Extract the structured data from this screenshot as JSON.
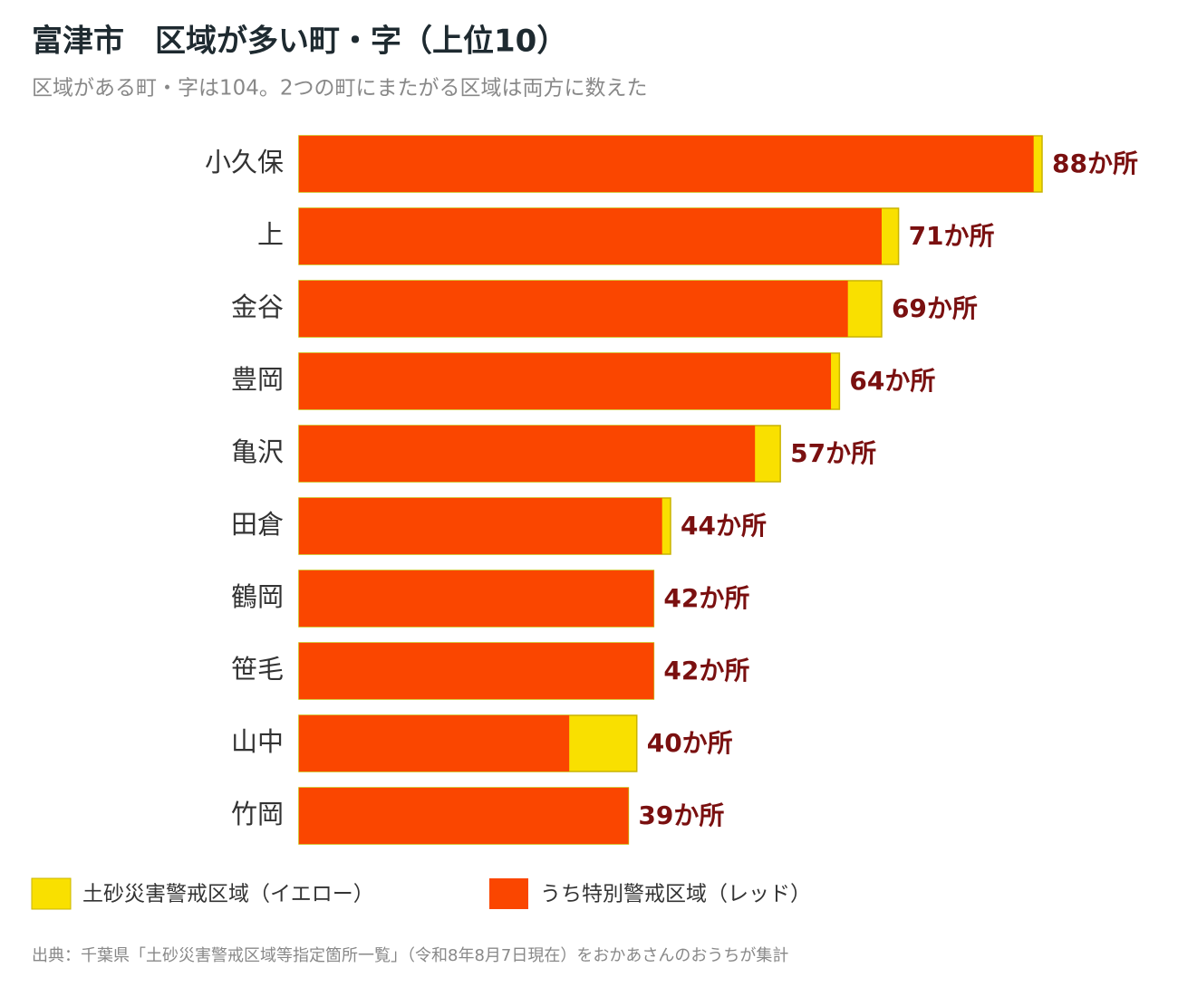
{
  "chart_data": {
    "type": "bar",
    "orientation": "horizontal",
    "title": "富津市　区域が多い町・字（上位10）",
    "subtitle": "区域がある町・字は104。2つの町にまたがる区域は両方に数えた",
    "source": "出典：千葉県「土砂災害警戒区域等指定箇所一覧」（令和8年8月7日現在）をおかあさんのおうちが集計",
    "categories": [
      "小久保",
      "上",
      "金谷",
      "豊岡",
      "亀沢",
      "田倉",
      "鶴岡",
      "笹毛",
      "山中",
      "竹岡"
    ],
    "series": [
      {
        "name": "土砂災害警戒区域（イエロー）",
        "color": "#f9e000",
        "values": [
          88,
          71,
          69,
          64,
          57,
          44,
          42,
          42,
          40,
          39
        ],
        "value_labels": [
          "88か所",
          "71か所",
          "69か所",
          "64か所",
          "57か所",
          "44か所",
          "42か所",
          "42か所",
          "40か所",
          "39か所"
        ]
      },
      {
        "name": "うち特別警戒区域（レッド）",
        "color": "#fa4600",
        "values": [
          87,
          69,
          65,
          63,
          54,
          43,
          42,
          42,
          32,
          39
        ]
      }
    ]
  }
}
